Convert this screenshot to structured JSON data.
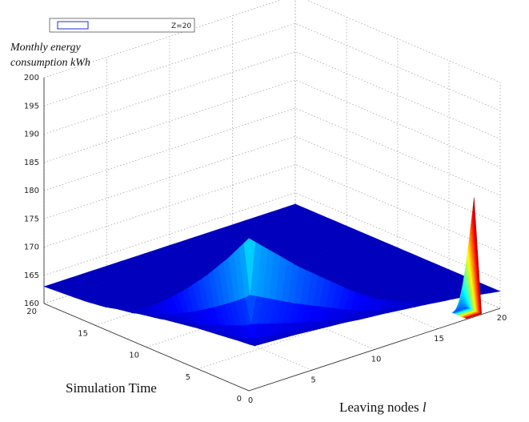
{
  "chart_data": {
    "type": "surface",
    "title": "",
    "zlabel_line1": "Monthly energy",
    "zlabel_line2": "consumption kWh",
    "xlabel": "Leaving nodes",
    "xlabel_symbol": "l",
    "ylabel": "Simulation Time",
    "legend": {
      "label": "Z=20",
      "placement": "top-left"
    },
    "xlim": [
      0,
      20
    ],
    "ylim": [
      0,
      20
    ],
    "zlim": [
      160,
      200
    ],
    "x_ticks": [
      "0",
      "5",
      "10",
      "15",
      "20"
    ],
    "y_ticks": [
      "0",
      "5",
      "10",
      "15",
      "20"
    ],
    "z_ticks": [
      "160",
      "165",
      "170",
      "175",
      "180",
      "185",
      "190",
      "195",
      "200"
    ],
    "grid": true,
    "colormap": "jet",
    "surface": {
      "base_level": 163,
      "peak": {
        "x": 0,
        "y": 0,
        "z": 187
      },
      "ridge_along_x0": [
        {
          "y": 0,
          "z": 187
        },
        {
          "y": 2,
          "z": 182
        },
        {
          "y": 4,
          "z": 177.5
        },
        {
          "y": 6,
          "z": 173.5
        },
        {
          "y": 8,
          "z": 170
        },
        {
          "y": 10,
          "z": 167
        },
        {
          "y": 12,
          "z": 165
        },
        {
          "y": 14,
          "z": 164
        },
        {
          "y": 16,
          "z": 163.5
        },
        {
          "y": 20,
          "z": 163
        }
      ],
      "ridge_along_y0": [
        {
          "x": 0,
          "z": 187
        },
        {
          "x": 2,
          "z": 183
        },
        {
          "x": 4,
          "z": 179
        },
        {
          "x": 6,
          "z": 175.5
        },
        {
          "x": 8,
          "z": 172
        },
        {
          "x": 10,
          "z": 169
        },
        {
          "x": 12,
          "z": 167
        },
        {
          "x": 14,
          "z": 165.5
        },
        {
          "x": 16,
          "z": 164.5
        },
        {
          "x": 20,
          "z": 163
        }
      ],
      "spike": {
        "x": 18,
        "y": 0,
        "z_max": 181,
        "z_min": 160
      }
    }
  }
}
